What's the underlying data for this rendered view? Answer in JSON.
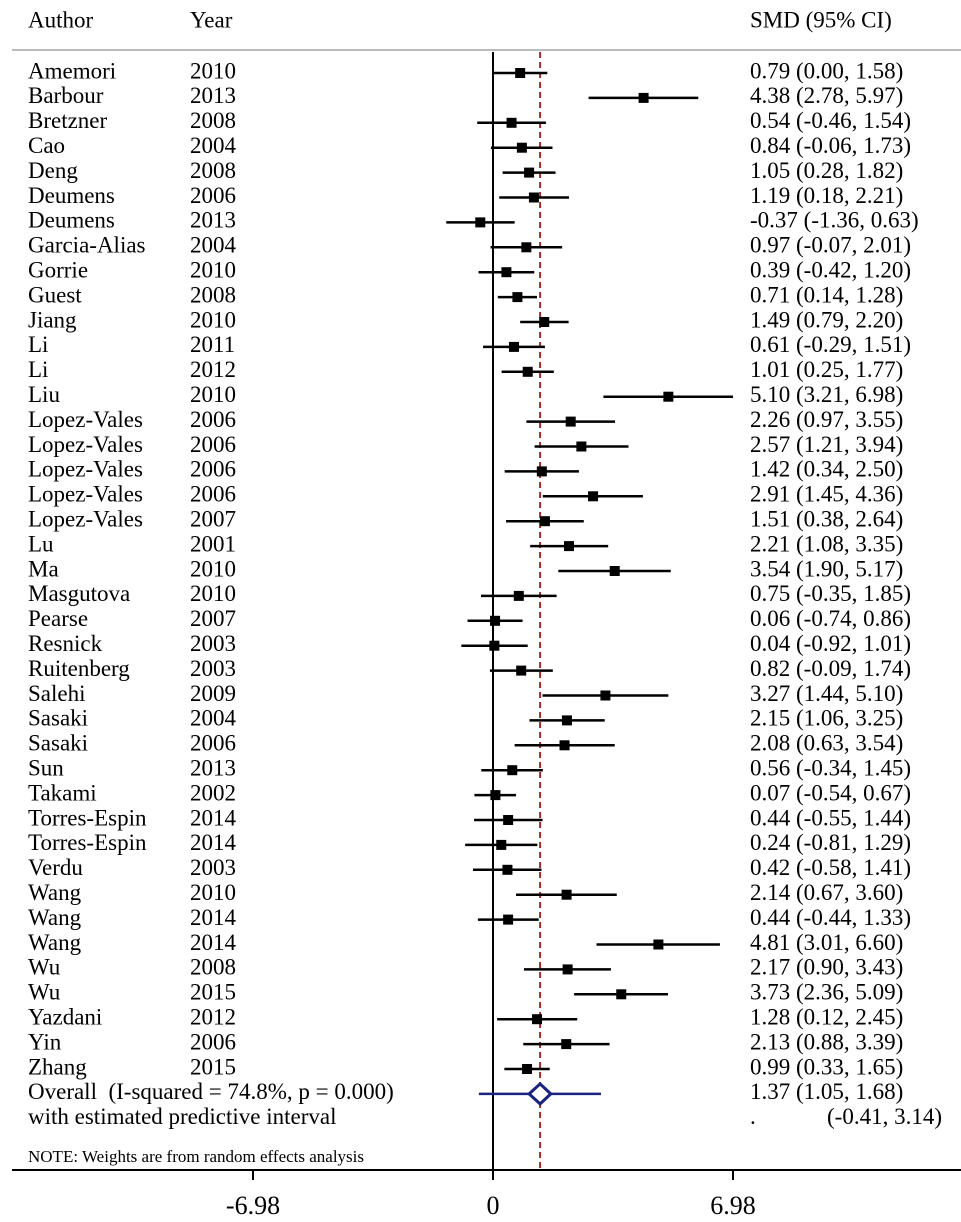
{
  "chart_data": {
    "type": "forest",
    "columns": {
      "author": "Author",
      "year": "Year",
      "estimate": "SMD (95% CI)"
    },
    "rows": [
      {
        "author": "Amemori",
        "year": "2010",
        "value": 0.79,
        "lower": 0.0,
        "upper": 1.58,
        "value_label": "0.79 (0.00, 1.58)"
      },
      {
        "author": "Barbour",
        "year": "2013",
        "value": 4.38,
        "lower": 2.78,
        "upper": 5.97,
        "value_label": "4.38 (2.78, 5.97)"
      },
      {
        "author": "Bretzner",
        "year": "2008",
        "value": 0.54,
        "lower": -0.46,
        "upper": 1.54,
        "value_label": "0.54 (-0.46, 1.54)"
      },
      {
        "author": "Cao",
        "year": "2004",
        "value": 0.84,
        "lower": -0.06,
        "upper": 1.73,
        "value_label": "0.84 (-0.06, 1.73)"
      },
      {
        "author": "Deng",
        "year": "2008",
        "value": 1.05,
        "lower": 0.28,
        "upper": 1.82,
        "value_label": "1.05 (0.28, 1.82)"
      },
      {
        "author": "Deumens",
        "year": "2006",
        "value": 1.19,
        "lower": 0.18,
        "upper": 2.21,
        "value_label": "1.19 (0.18, 2.21)"
      },
      {
        "author": "Deumens",
        "year": "2013",
        "value": -0.37,
        "lower": -1.36,
        "upper": 0.63,
        "value_label": "-0.37 (-1.36, 0.63)"
      },
      {
        "author": "Garcia-Alias",
        "year": "2004",
        "value": 0.97,
        "lower": -0.07,
        "upper": 2.01,
        "value_label": "0.97 (-0.07, 2.01)"
      },
      {
        "author": "Gorrie",
        "year": "2010",
        "value": 0.39,
        "lower": -0.42,
        "upper": 1.2,
        "value_label": "0.39 (-0.42, 1.20)"
      },
      {
        "author": "Guest",
        "year": "2008",
        "value": 0.71,
        "lower": 0.14,
        "upper": 1.28,
        "value_label": "0.71 (0.14, 1.28)"
      },
      {
        "author": "Jiang",
        "year": "2010",
        "value": 1.49,
        "lower": 0.79,
        "upper": 2.2,
        "value_label": "1.49 (0.79, 2.20)"
      },
      {
        "author": "Li",
        "year": "2011",
        "value": 0.61,
        "lower": -0.29,
        "upper": 1.51,
        "value_label": "0.61 (-0.29, 1.51)"
      },
      {
        "author": "Li",
        "year": "2012",
        "value": 1.01,
        "lower": 0.25,
        "upper": 1.77,
        "value_label": "1.01 (0.25, 1.77)"
      },
      {
        "author": "Liu",
        "year": "2010",
        "value": 5.1,
        "lower": 3.21,
        "upper": 6.98,
        "value_label": "5.10 (3.21, 6.98)"
      },
      {
        "author": "Lopez-Vales",
        "year": "2006",
        "value": 2.26,
        "lower": 0.97,
        "upper": 3.55,
        "value_label": "2.26 (0.97, 3.55)"
      },
      {
        "author": "Lopez-Vales",
        "year": "2006",
        "value": 2.57,
        "lower": 1.21,
        "upper": 3.94,
        "value_label": "2.57 (1.21, 3.94)"
      },
      {
        "author": "Lopez-Vales",
        "year": "2006",
        "value": 1.42,
        "lower": 0.34,
        "upper": 2.5,
        "value_label": "1.42 (0.34, 2.50)"
      },
      {
        "author": "Lopez-Vales",
        "year": "2006",
        "value": 2.91,
        "lower": 1.45,
        "upper": 4.36,
        "value_label": "2.91 (1.45, 4.36)"
      },
      {
        "author": "Lopez-Vales",
        "year": "2007",
        "value": 1.51,
        "lower": 0.38,
        "upper": 2.64,
        "value_label": "1.51 (0.38, 2.64)"
      },
      {
        "author": "Lu",
        "year": "2001",
        "value": 2.21,
        "lower": 1.08,
        "upper": 3.35,
        "value_label": "2.21 (1.08, 3.35)"
      },
      {
        "author": "Ma",
        "year": "2010",
        "value": 3.54,
        "lower": 1.9,
        "upper": 5.17,
        "value_label": "3.54 (1.90, 5.17)"
      },
      {
        "author": "Masgutova",
        "year": "2010",
        "value": 0.75,
        "lower": -0.35,
        "upper": 1.85,
        "value_label": "0.75 (-0.35, 1.85)"
      },
      {
        "author": "Pearse",
        "year": "2007",
        "value": 0.06,
        "lower": -0.74,
        "upper": 0.86,
        "value_label": "0.06 (-0.74, 0.86)"
      },
      {
        "author": "Resnick",
        "year": "2003",
        "value": 0.04,
        "lower": -0.92,
        "upper": 1.01,
        "value_label": "0.04 (-0.92, 1.01)"
      },
      {
        "author": "Ruitenberg",
        "year": "2003",
        "value": 0.82,
        "lower": -0.09,
        "upper": 1.74,
        "value_label": "0.82 (-0.09, 1.74)"
      },
      {
        "author": "Salehi",
        "year": "2009",
        "value": 3.27,
        "lower": 1.44,
        "upper": 5.1,
        "value_label": "3.27 (1.44, 5.10)"
      },
      {
        "author": "Sasaki",
        "year": "2004",
        "value": 2.15,
        "lower": 1.06,
        "upper": 3.25,
        "value_label": "2.15 (1.06, 3.25)"
      },
      {
        "author": "Sasaki",
        "year": "2006",
        "value": 2.08,
        "lower": 0.63,
        "upper": 3.54,
        "value_label": "2.08 (0.63, 3.54)"
      },
      {
        "author": "Sun",
        "year": "2013",
        "value": 0.56,
        "lower": -0.34,
        "upper": 1.45,
        "value_label": "0.56 (-0.34, 1.45)"
      },
      {
        "author": "Takami",
        "year": "2002",
        "value": 0.07,
        "lower": -0.54,
        "upper": 0.67,
        "value_label": "0.07 (-0.54, 0.67)"
      },
      {
        "author": "Torres-Espin",
        "year": "2014",
        "value": 0.44,
        "lower": -0.55,
        "upper": 1.44,
        "value_label": "0.44 (-0.55, 1.44)"
      },
      {
        "author": "Torres-Espin",
        "year": "2014",
        "value": 0.24,
        "lower": -0.81,
        "upper": 1.29,
        "value_label": "0.24 (-0.81, 1.29)"
      },
      {
        "author": "Verdu",
        "year": "2003",
        "value": 0.42,
        "lower": -0.58,
        "upper": 1.41,
        "value_label": "0.42 (-0.58, 1.41)"
      },
      {
        "author": "Wang",
        "year": "2010",
        "value": 2.14,
        "lower": 0.67,
        "upper": 3.6,
        "value_label": "2.14 (0.67, 3.60)"
      },
      {
        "author": "Wang",
        "year": "2014",
        "value": 0.44,
        "lower": -0.44,
        "upper": 1.33,
        "value_label": "0.44 (-0.44, 1.33)"
      },
      {
        "author": "Wang",
        "year": "2014",
        "value": 4.81,
        "lower": 3.01,
        "upper": 6.6,
        "value_label": "4.81 (3.01, 6.60)"
      },
      {
        "author": "Wu",
        "year": "2008",
        "value": 2.17,
        "lower": 0.9,
        "upper": 3.43,
        "value_label": "2.17 (0.90, 3.43)"
      },
      {
        "author": "Wu",
        "year": "2015",
        "value": 3.73,
        "lower": 2.36,
        "upper": 5.09,
        "value_label": "3.73 (2.36, 5.09)"
      },
      {
        "author": "Yazdani",
        "year": "2012",
        "value": 1.28,
        "lower": 0.12,
        "upper": 2.45,
        "value_label": "1.28 (0.12, 2.45)"
      },
      {
        "author": "Yin",
        "year": "2006",
        "value": 2.13,
        "lower": 0.88,
        "upper": 3.39,
        "value_label": "2.13 (0.88, 3.39)"
      },
      {
        "author": "Zhang",
        "year": "2015",
        "value": 0.99,
        "lower": 0.33,
        "upper": 1.65,
        "value_label": "0.99 (0.33, 1.65)"
      }
    ],
    "overall": {
      "label": "Overall  (I-squared = 74.8%, p = 0.000)",
      "value": 1.37,
      "lower": 1.05,
      "upper": 1.68,
      "value_label": "1.37 (1.05, 1.68)"
    },
    "predictive_interval": {
      "label": "with estimated predictive interval",
      "marker": ".",
      "lower": -0.41,
      "upper": 3.14,
      "value_label": "(-0.41, 3.14)"
    },
    "note": "NOTE: Weights are from random effects analysis",
    "xlim": [
      -6.98,
      6.98
    ],
    "xticks": [
      -6.98,
      0,
      6.98
    ],
    "marker_color": "#000000",
    "overall_color": "#1a237e",
    "reference_line_color": "#9b2c2c"
  }
}
